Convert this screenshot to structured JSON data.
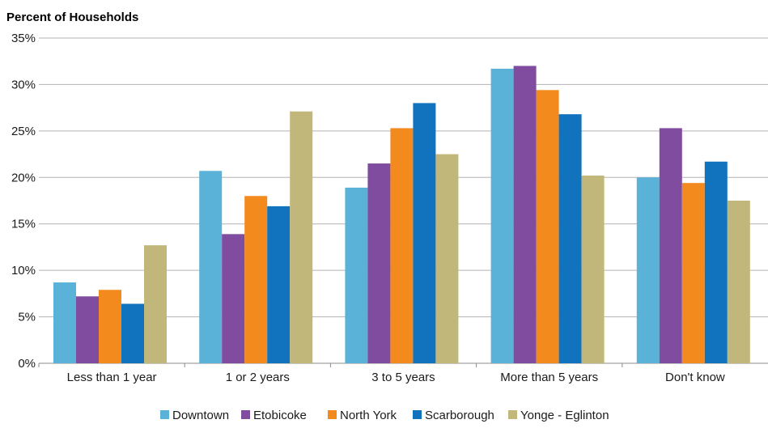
{
  "chart_data": {
    "type": "bar",
    "ylabel": "Percent of Households",
    "xlabel": "",
    "ylim": [
      0,
      35
    ],
    "y_ticks": [
      "0%",
      "5%",
      "10%",
      "15%",
      "20%",
      "25%",
      "30%",
      "35%"
    ],
    "y_tick_values": [
      0,
      5,
      10,
      15,
      20,
      25,
      30,
      35
    ],
    "categories": [
      "Less than 1 year",
      "1 or 2 years",
      "3 to 5 years",
      "More than 5 years",
      "Don't know"
    ],
    "series": [
      {
        "name": "Downtown",
        "color": "#5bb2d8",
        "values": [
          8.7,
          20.7,
          18.9,
          31.7,
          20.0
        ]
      },
      {
        "name": "Etobicoke",
        "color": "#7f4c9f",
        "values": [
          7.2,
          13.9,
          21.5,
          32.0,
          25.3
        ]
      },
      {
        "name": "North York",
        "color": "#f28a1e",
        "values": [
          7.9,
          18.0,
          25.3,
          29.4,
          19.4
        ]
      },
      {
        "name": "Scarborough",
        "color": "#1172bd",
        "values": [
          6.4,
          16.9,
          28.0,
          26.8,
          21.7
        ]
      },
      {
        "name": "Yonge - Eglinton",
        "color": "#c1b77a",
        "values": [
          12.7,
          27.1,
          22.5,
          20.2,
          17.5
        ]
      }
    ],
    "grid": true,
    "legend_position": "bottom"
  }
}
